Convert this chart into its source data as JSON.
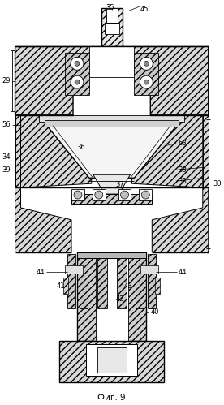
{
  "title": "Фиг. 9",
  "background_color": "#ffffff",
  "fig_width": 2.76,
  "fig_height": 4.99,
  "dpi": 100
}
